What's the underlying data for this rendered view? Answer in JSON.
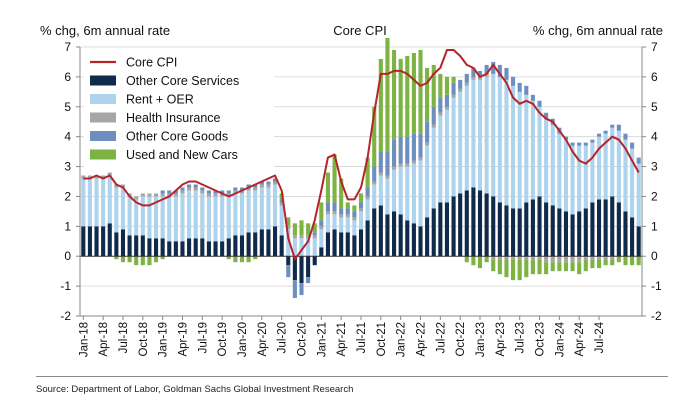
{
  "chart_data": {
    "type": "stacked-bar-with-line",
    "title": "Core CPI",
    "ylabel_left": "% chg, 6m annual rate",
    "ylabel_right": "% chg, 6m annual rate",
    "ylim": [
      -2,
      7
    ],
    "yticks": [
      -2,
      -1,
      0,
      1,
      2,
      3,
      4,
      5,
      6,
      7
    ],
    "x_tick_labels": [
      "Jan-18",
      "Apr-18",
      "Jul-18",
      "Oct-18",
      "Jan-19",
      "Apr-19",
      "Jul-19",
      "Oct-19",
      "Jan-20",
      "Apr-20",
      "Jul-20",
      "Oct-20",
      "Jan-21",
      "Apr-21",
      "Jul-21",
      "Oct-21",
      "Jan-22",
      "Apr-22",
      "Jul-22",
      "Oct-22",
      "Jan-23",
      "Apr-23",
      "Jul-23",
      "Oct-23",
      "Jan-24",
      "Apr-24",
      "Jul-24"
    ],
    "legend": [
      {
        "name": "Core CPI",
        "color": "#b5242a",
        "kind": "line"
      },
      {
        "name": "Other Core Services",
        "color": "#0f2a4a",
        "kind": "bar"
      },
      {
        "name": "Rent + OER",
        "color": "#aed3ec",
        "kind": "bar"
      },
      {
        "name": "Health Insurance",
        "color": "#a6a6a6",
        "kind": "bar"
      },
      {
        "name": "Other Core Goods",
        "color": "#6d8fbf",
        "kind": "bar"
      },
      {
        "name": "Used and New Cars",
        "color": "#7cb342",
        "kind": "bar"
      }
    ],
    "series": [
      {
        "name": "Other Core Services",
        "values": [
          1.0,
          1.0,
          1.0,
          1.0,
          1.1,
          0.8,
          0.9,
          0.7,
          0.7,
          0.7,
          0.6,
          0.6,
          0.6,
          0.5,
          0.5,
          0.5,
          0.6,
          0.6,
          0.6,
          0.5,
          0.5,
          0.5,
          0.6,
          0.7,
          0.7,
          0.8,
          0.8,
          0.9,
          0.9,
          1.0,
          0.7,
          -0.3,
          -0.8,
          -0.9,
          -0.7,
          -0.3,
          0.3,
          0.8,
          0.9,
          0.8,
          0.8,
          0.7,
          0.9,
          1.2,
          1.6,
          1.7,
          1.4,
          1.5,
          1.4,
          1.2,
          1.1,
          1.0,
          1.3,
          1.6,
          1.8,
          1.8,
          2.0,
          2.1,
          2.2,
          2.3,
          2.2,
          2.1,
          2.0,
          1.8,
          1.7,
          1.6,
          1.6,
          1.8,
          1.9,
          2.0,
          1.8,
          1.7,
          1.6,
          1.5,
          1.4,
          1.5,
          1.6,
          1.8,
          1.9,
          1.9,
          2.0,
          1.8,
          1.5,
          1.3,
          1.0
        ]
      },
      {
        "name": "Rent + OER",
        "values": [
          1.6,
          1.6,
          1.6,
          1.6,
          1.6,
          1.5,
          1.4,
          1.3,
          1.2,
          1.3,
          1.4,
          1.4,
          1.4,
          1.5,
          1.5,
          1.6,
          1.6,
          1.6,
          1.5,
          1.5,
          1.5,
          1.5,
          1.4,
          1.4,
          1.4,
          1.4,
          1.4,
          1.4,
          1.4,
          1.4,
          1.0,
          0.9,
          0.6,
          0.6,
          0.6,
          0.6,
          0.6,
          0.6,
          0.5,
          0.5,
          0.5,
          0.5,
          0.6,
          0.7,
          0.8,
          1.0,
          1.2,
          1.4,
          1.6,
          1.8,
          2.0,
          2.2,
          2.4,
          2.7,
          2.9,
          3.1,
          3.3,
          3.4,
          3.5,
          3.6,
          3.7,
          3.9,
          4.1,
          4.2,
          4.2,
          4.1,
          3.9,
          3.6,
          3.3,
          3.0,
          2.8,
          2.7,
          2.5,
          2.4,
          2.3,
          2.2,
          2.1,
          2.0,
          2.1,
          2.2,
          2.3,
          2.4,
          2.4,
          2.3,
          2.1
        ]
      },
      {
        "name": "Health Insurance",
        "values": [
          0.1,
          0.1,
          0.1,
          0.1,
          0.1,
          0.1,
          0.1,
          0.1,
          0.1,
          0.1,
          0.1,
          0.1,
          0.1,
          0.1,
          0.1,
          0.1,
          0.1,
          0.1,
          0.1,
          0.1,
          0.1,
          0.1,
          0.1,
          0.1,
          0.1,
          0.1,
          0.1,
          0.1,
          0.1,
          0.1,
          0.1,
          0.1,
          0.1,
          0.1,
          0.1,
          0.1,
          0.1,
          0.1,
          0.1,
          0.1,
          0.1,
          0.1,
          0.1,
          0.1,
          0.1,
          0.1,
          0.1,
          0.1,
          0.1,
          0.1,
          0.1,
          0.1,
          0.1,
          0.1,
          0.1,
          0.1,
          0.1,
          0.1,
          0.1,
          0.1,
          0.1,
          0.1,
          -0.1,
          -0.1,
          -0.1,
          -0.1,
          -0.1,
          -0.1,
          -0.1,
          -0.1,
          -0.2,
          -0.2,
          -0.2,
          -0.2,
          -0.2,
          -0.2,
          -0.1,
          -0.1,
          -0.1,
          -0.1,
          -0.1,
          0.0,
          0.0,
          0.0,
          0.0
        ]
      },
      {
        "name": "Other Core Goods",
        "values": [
          0.0,
          0.0,
          0.0,
          0.0,
          0.0,
          0.0,
          0.0,
          0.0,
          0.0,
          0.0,
          0.0,
          0.0,
          0.1,
          0.1,
          0.1,
          0.1,
          0.1,
          0.1,
          0.1,
          0.1,
          0.1,
          0.1,
          0.1,
          0.1,
          0.1,
          0.1,
          0.1,
          0.1,
          0.1,
          0.1,
          0.1,
          -0.4,
          -0.6,
          -0.4,
          -0.2,
          0.1,
          0.2,
          0.3,
          0.3,
          0.2,
          0.2,
          0.2,
          0.2,
          0.3,
          0.5,
          0.7,
          0.8,
          0.9,
          0.9,
          0.9,
          0.9,
          0.8,
          0.7,
          0.6,
          0.5,
          0.4,
          0.4,
          0.3,
          0.3,
          0.3,
          0.2,
          0.3,
          0.4,
          0.4,
          0.4,
          0.3,
          0.3,
          0.3,
          0.2,
          0.2,
          0.2,
          0.2,
          0.2,
          0.1,
          0.1,
          0.1,
          0.1,
          0.1,
          0.1,
          0.1,
          0.1,
          0.2,
          0.2,
          0.2,
          0.2
        ]
      },
      {
        "name": "Used and New Cars",
        "values": [
          0.0,
          0.0,
          0.0,
          0.0,
          0.0,
          -0.1,
          -0.2,
          -0.2,
          -0.3,
          -0.3,
          -0.3,
          -0.2,
          -0.1,
          0.0,
          0.0,
          0.0,
          0.0,
          0.0,
          0.0,
          0.0,
          0.0,
          0.0,
          -0.1,
          -0.2,
          -0.2,
          -0.2,
          -0.1,
          0.0,
          0.0,
          0.0,
          0.2,
          0.3,
          0.4,
          0.5,
          0.4,
          0.3,
          0.6,
          1.0,
          1.6,
          1.0,
          0.2,
          0.2,
          0.3,
          1.0,
          2.0,
          3.1,
          3.8,
          3.0,
          2.6,
          2.7,
          2.7,
          2.8,
          1.8,
          1.4,
          0.8,
          0.6,
          0.2,
          0.0,
          -0.2,
          -0.3,
          -0.4,
          -0.2,
          -0.4,
          -0.5,
          -0.6,
          -0.7,
          -0.7,
          -0.6,
          -0.5,
          -0.5,
          -0.4,
          -0.3,
          -0.3,
          -0.3,
          -0.3,
          -0.4,
          -0.4,
          -0.3,
          -0.3,
          -0.2,
          -0.2,
          -0.2,
          -0.3,
          -0.3,
          -0.3
        ]
      }
    ],
    "core_cpi_line": [
      2.6,
      2.6,
      2.7,
      2.6,
      2.7,
      2.4,
      2.3,
      2.0,
      1.8,
      1.7,
      1.7,
      1.8,
      1.9,
      2.0,
      2.2,
      2.4,
      2.5,
      2.5,
      2.4,
      2.3,
      2.2,
      2.1,
      2.0,
      2.1,
      2.2,
      2.3,
      2.4,
      2.5,
      2.6,
      2.7,
      2.2,
      0.6,
      -0.1,
      0.2,
      0.5,
      1.2,
      2.2,
      3.3,
      3.4,
      2.5,
      1.9,
      1.9,
      2.3,
      3.3,
      4.8,
      6.1,
      6.1,
      6.2,
      6.2,
      6.1,
      5.9,
      5.7,
      5.8,
      6.1,
      6.3,
      6.9,
      6.9,
      6.7,
      6.4,
      6.3,
      6.0,
      6.1,
      6.4,
      6.1,
      5.8,
      5.3,
      5.1,
      5.2,
      5.1,
      4.8,
      4.6,
      4.5,
      4.2,
      3.9,
      3.5,
      3.2,
      3.1,
      3.3,
      3.6,
      3.8,
      4.0,
      3.9,
      3.6,
      3.2,
      2.8
    ],
    "source": "Source: Department of Labor, Goldman Sachs Global Investment Research"
  }
}
